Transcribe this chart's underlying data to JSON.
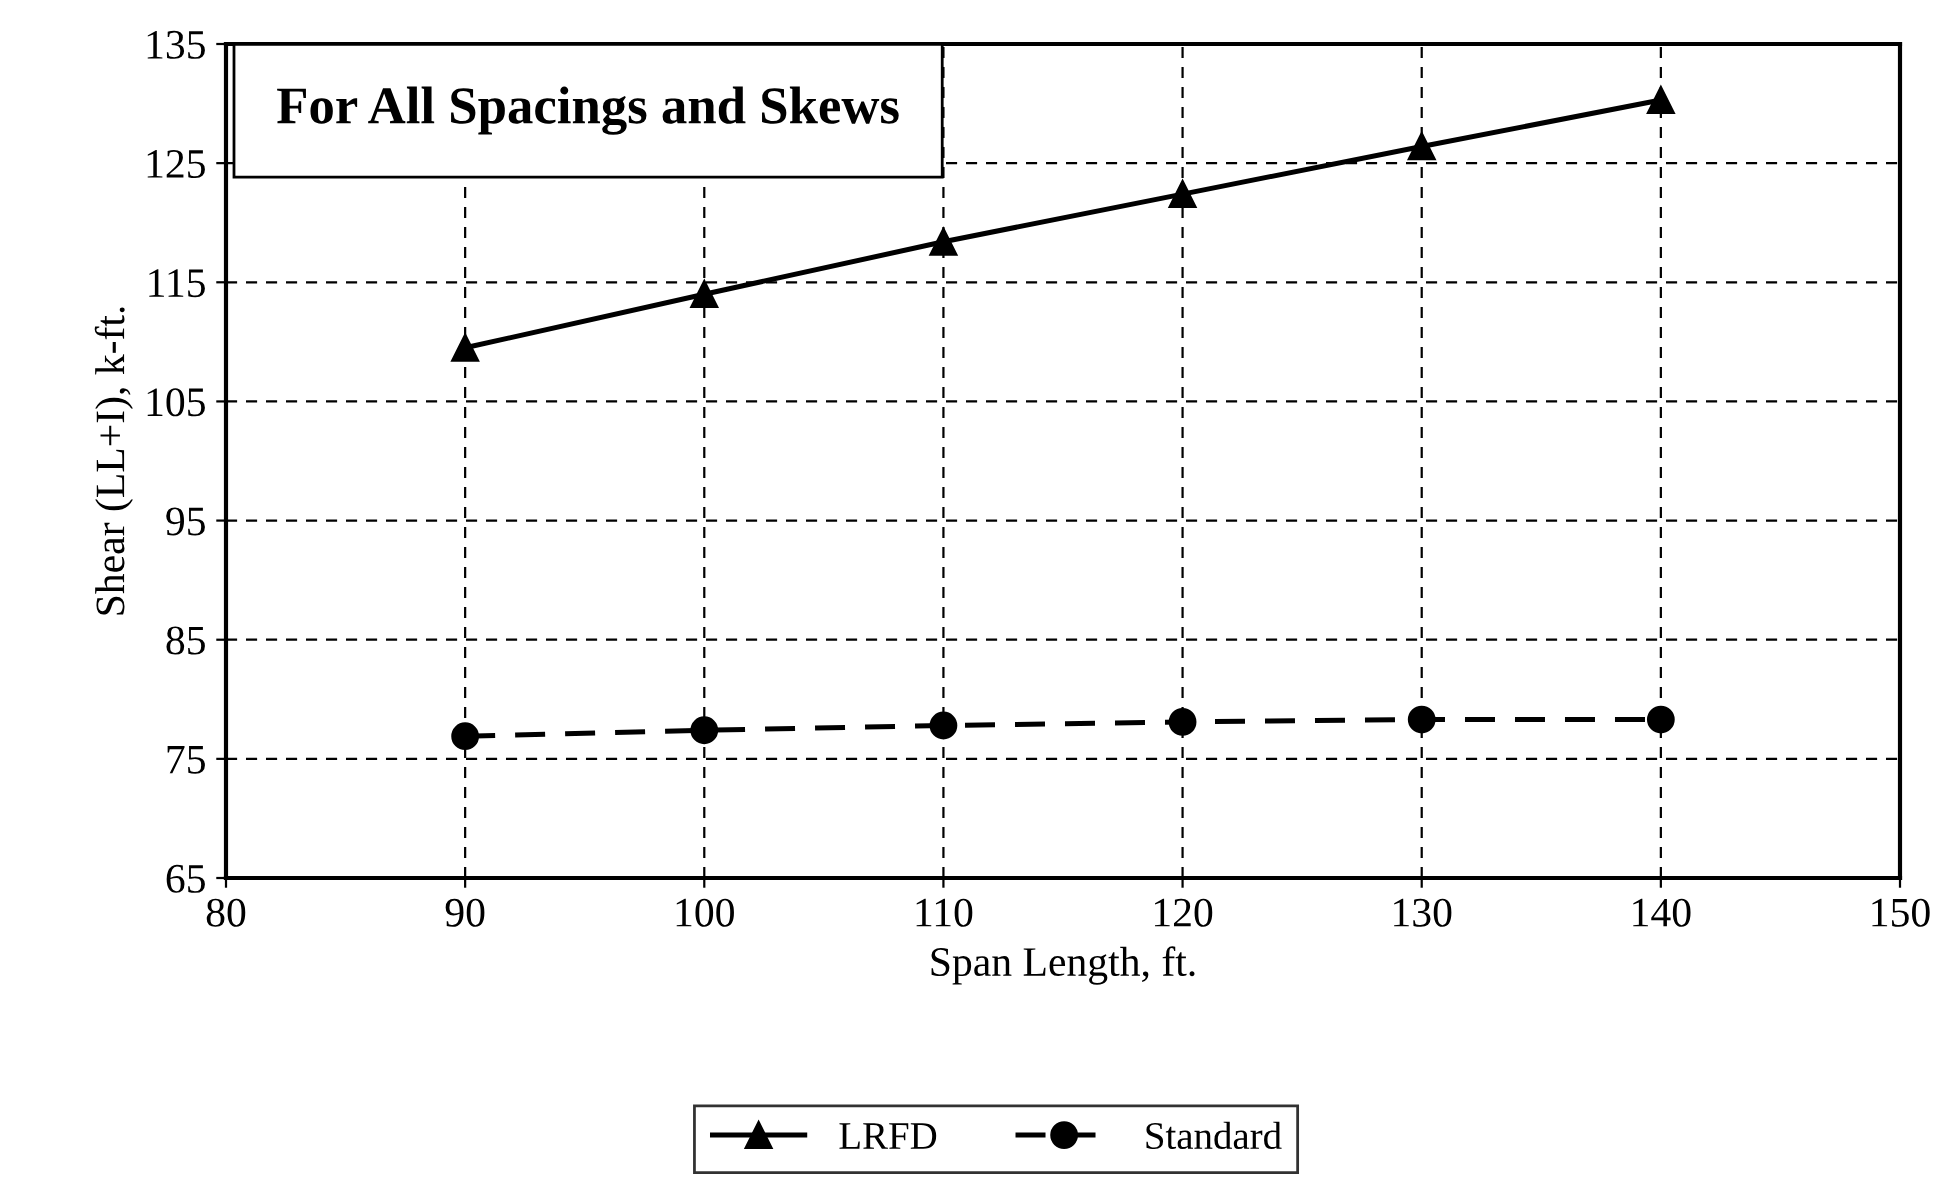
{
  "chart_data": {
    "type": "line",
    "xlabel": "Span Length, ft.",
    "ylabel": "Shear (LL+I), k-ft.",
    "annotations": [
      "For All Spacings and Skews"
    ],
    "x": [
      90,
      100,
      110,
      120,
      130,
      140
    ],
    "series": [
      {
        "name": "LRFD",
        "color": "#000000",
        "values": [
          109.5,
          114.0,
          118.4,
          122.4,
          126.4,
          130.3
        ],
        "marker": "triangle",
        "line_style": "solid"
      },
      {
        "name": "Standard",
        "color": "#000000",
        "values": [
          76.9,
          77.4,
          77.8,
          78.1,
          78.3,
          78.3
        ],
        "marker": "circle",
        "line_style": "dashed"
      }
    ],
    "xlim": [
      80,
      150
    ],
    "xticks": [
      80,
      90,
      100,
      110,
      120,
      130,
      140,
      150
    ],
    "ylim": [
      65,
      135
    ],
    "yticks": [
      65,
      75,
      85,
      95,
      105,
      115,
      125,
      135
    ],
    "grid": true,
    "legend": "bottom"
  }
}
